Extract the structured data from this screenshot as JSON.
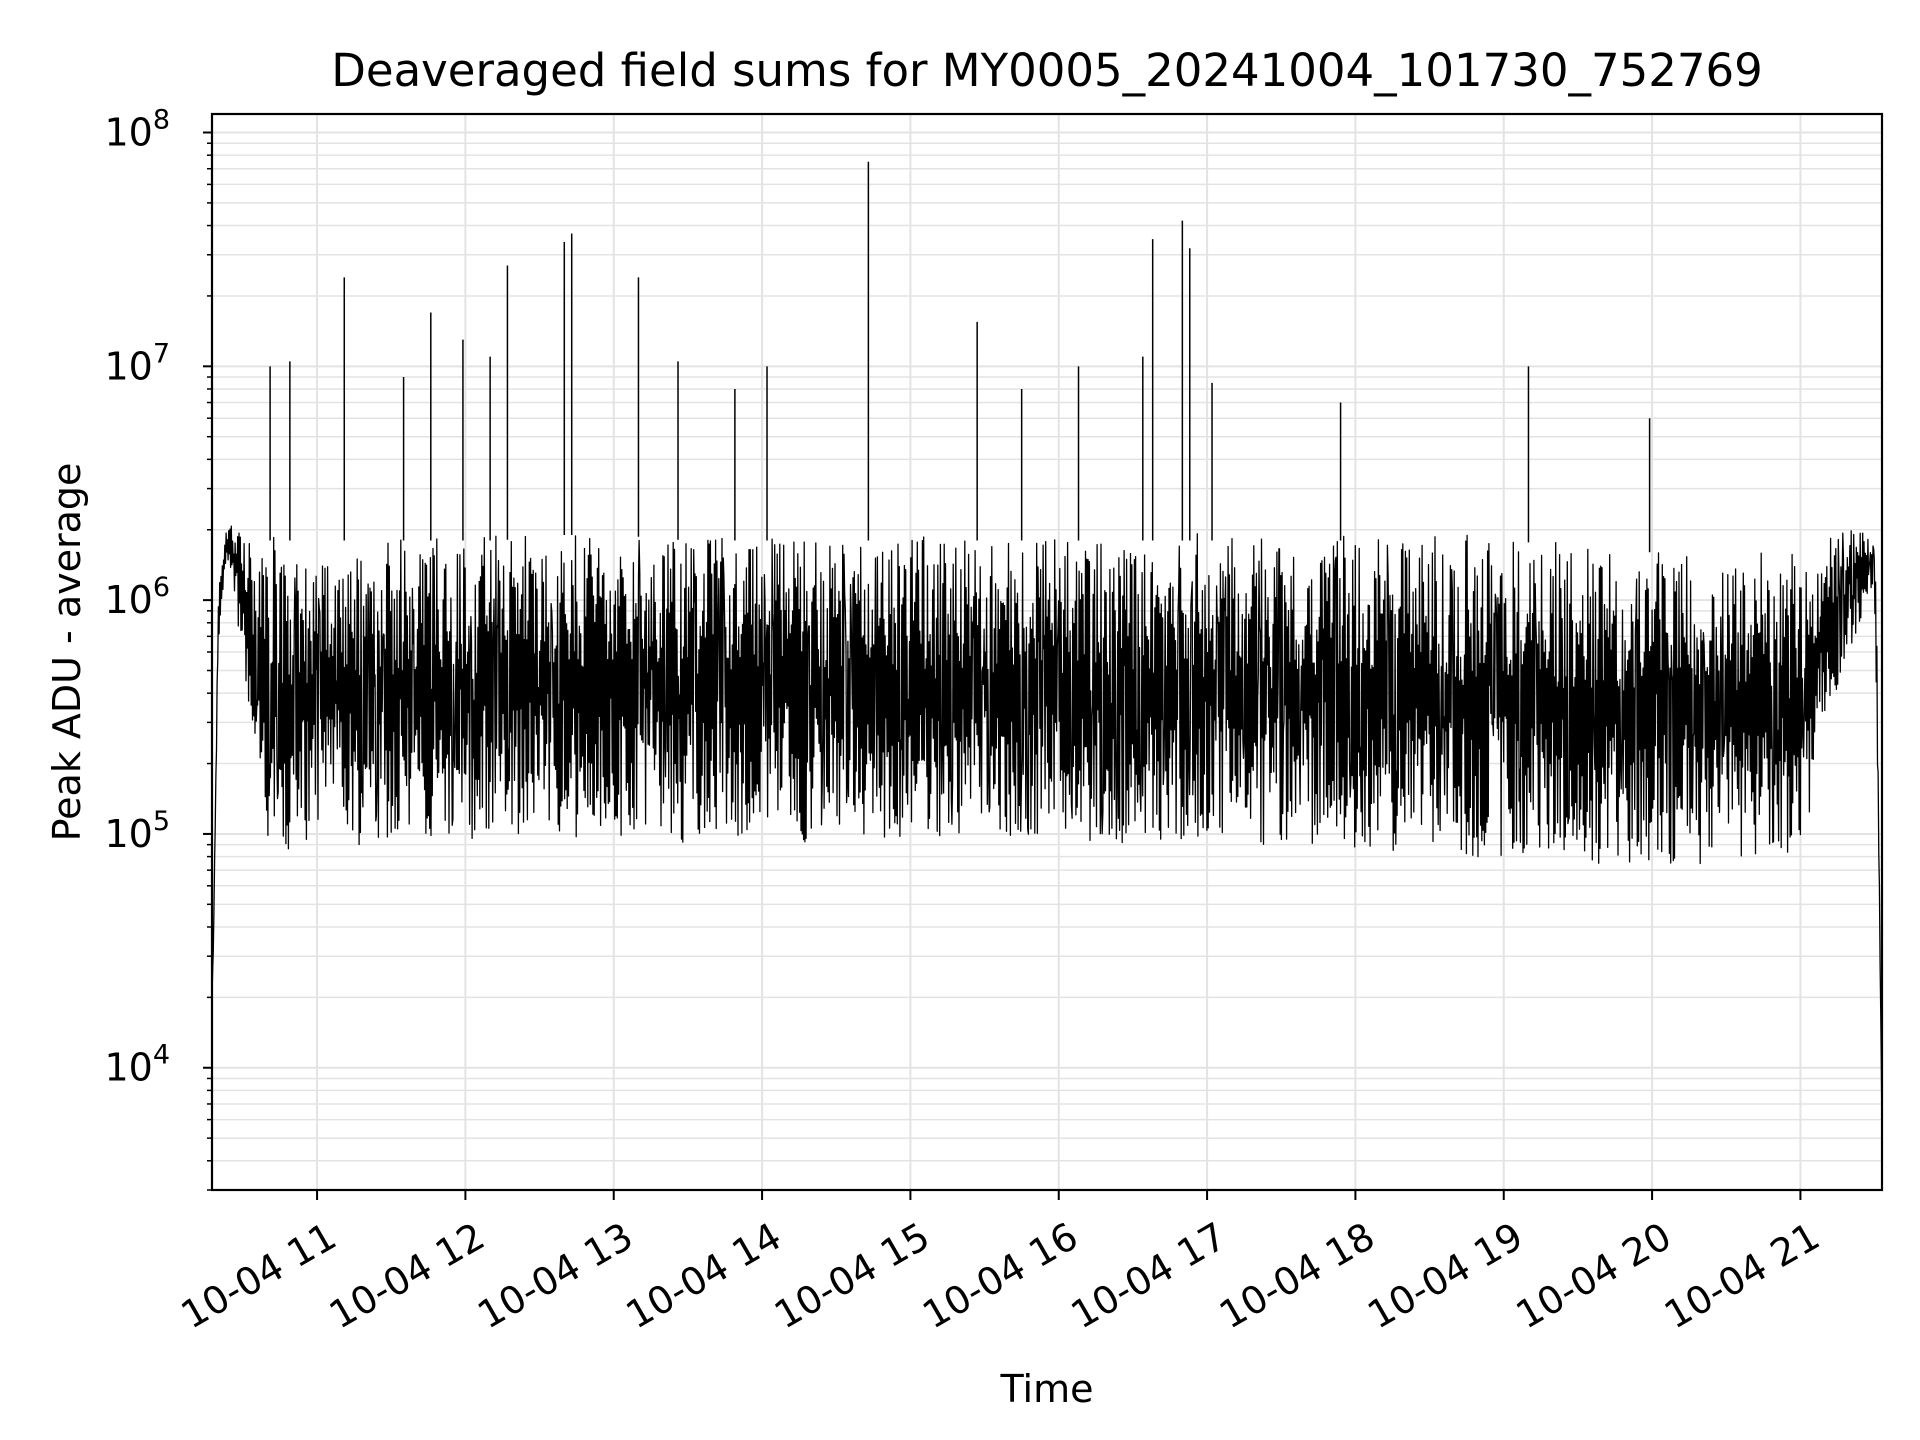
{
  "chart_data": {
    "type": "line",
    "title": "Deaveraged field sums for MY0005_20241004_101730_752769",
    "xlabel": "Time",
    "ylabel": "Peak ADU - average",
    "yscale": "log",
    "ylim": [
      3000,
      120000000
    ],
    "xlim": [
      "2024-10-04 10:17:30",
      "2024-10-04 21:33:00"
    ],
    "grid": true,
    "line_color": "#000000",
    "grid_color": "#e3e3e3",
    "x_ticks": [
      {
        "value": "2024-10-04 11:00",
        "label": "10-04 11"
      },
      {
        "value": "2024-10-04 12:00",
        "label": "10-04 12"
      },
      {
        "value": "2024-10-04 13:00",
        "label": "10-04 13"
      },
      {
        "value": "2024-10-04 14:00",
        "label": "10-04 14"
      },
      {
        "value": "2024-10-04 15:00",
        "label": "10-04 15"
      },
      {
        "value": "2024-10-04 16:00",
        "label": "10-04 16"
      },
      {
        "value": "2024-10-04 17:00",
        "label": "10-04 17"
      },
      {
        "value": "2024-10-04 18:00",
        "label": "10-04 18"
      },
      {
        "value": "2024-10-04 19:00",
        "label": "10-04 19"
      },
      {
        "value": "2024-10-04 20:00",
        "label": "10-04 20"
      },
      {
        "value": "2024-10-04 21:00",
        "label": "10-04 21"
      }
    ],
    "y_ticks": [
      {
        "value": 10000,
        "base": "10",
        "exp": "4"
      },
      {
        "value": 100000,
        "base": "10",
        "exp": "5"
      },
      {
        "value": 1000000,
        "base": "10",
        "exp": "6"
      },
      {
        "value": 10000000,
        "base": "10",
        "exp": "7"
      },
      {
        "value": 100000000,
        "base": "10",
        "exp": "8"
      }
    ],
    "series": [
      {
        "x": [
          "2024-10-04 10:17:30",
          "2024-10-04 10:18",
          "2024-10-04 10:20",
          "2024-10-04 10:23",
          "2024-10-04 10:27",
          "2024-10-04 10:30",
          "2024-10-04 10:33",
          "2024-10-04 10:36",
          "2024-10-04 10:40",
          "2024-10-04 10:45",
          "2024-10-04 10:50",
          "2024-10-04 10:55",
          "2024-10-04 11:00",
          "2024-10-04 11:10",
          "2024-10-04 11:20",
          "2024-10-04 11:30",
          "2024-10-04 11:40",
          "2024-10-04 11:50",
          "2024-10-04 12:00",
          "2024-10-04 12:15",
          "2024-10-04 12:30",
          "2024-10-04 12:45",
          "2024-10-04 13:00",
          "2024-10-04 13:30",
          "2024-10-04 14:00",
          "2024-10-04 14:30",
          "2024-10-04 15:00",
          "2024-10-04 15:30",
          "2024-10-04 16:00",
          "2024-10-04 16:30",
          "2024-10-04 17:00",
          "2024-10-04 17:30",
          "2024-10-04 18:00",
          "2024-10-04 18:30",
          "2024-10-04 19:00",
          "2024-10-04 19:30",
          "2024-10-04 20:00",
          "2024-10-04 20:30",
          "2024-10-04 21:00",
          "2024-10-04 21:10",
          "2024-10-04 21:20",
          "2024-10-04 21:25",
          "2024-10-04 21:28",
          "2024-10-04 21:30",
          "2024-10-04 21:31",
          "2024-10-04 21:32",
          "2024-10-04 21:33"
        ],
        "y_low": [
          20000,
          30000,
          600000,
          1500000,
          900000,
          600000,
          300000,
          120000,
          90000,
          80000,
          80000,
          80000,
          90000,
          90000,
          90000,
          95000,
          95000,
          95000,
          95000,
          95000,
          110000,
          100000,
          100000,
          95000,
          95000,
          95000,
          95000,
          95000,
          95000,
          95000,
          95000,
          95000,
          90000,
          85000,
          80000,
          75000,
          75000,
          75000,
          75000,
          300000,
          600000,
          900000,
          1200000,
          900000,
          200000,
          40000,
          5000
        ],
        "y_high": [
          20000,
          30000,
          1000000,
          2000000,
          2500000,
          2000000,
          1800000,
          1800000,
          1800000,
          1800000,
          1800000,
          1800000,
          1800000,
          1800000,
          1800000,
          1800000,
          1800000,
          1800000,
          1800000,
          1800000,
          1900000,
          1900000,
          1900000,
          1800000,
          1800000,
          1800000,
          1800000,
          1800000,
          1800000,
          1800000,
          1800000,
          1800000,
          1800000,
          1800000,
          1800000,
          1700000,
          1600000,
          1500000,
          1500000,
          1700000,
          2000000,
          2000000,
          1800000,
          1800000,
          600000,
          60000,
          5000
        ]
      }
    ],
    "spikes": [
      {
        "x": "2024-10-04 10:41",
        "y": 10000000
      },
      {
        "x": "2024-10-04 10:49",
        "y": 10500000
      },
      {
        "x": "2024-10-04 11:11",
        "y": 24000000
      },
      {
        "x": "2024-10-04 11:35",
        "y": 9000000
      },
      {
        "x": "2024-10-04 11:46",
        "y": 17000000
      },
      {
        "x": "2024-10-04 11:59",
        "y": 13000000
      },
      {
        "x": "2024-10-04 12:10",
        "y": 11000000
      },
      {
        "x": "2024-10-04 12:17",
        "y": 27000000
      },
      {
        "x": "2024-10-04 12:40",
        "y": 34000000
      },
      {
        "x": "2024-10-04 12:43",
        "y": 37000000
      },
      {
        "x": "2024-10-04 13:10",
        "y": 24000000
      },
      {
        "x": "2024-10-04 13:26",
        "y": 10500000
      },
      {
        "x": "2024-10-04 13:49",
        "y": 8000000
      },
      {
        "x": "2024-10-04 14:02",
        "y": 10000000
      },
      {
        "x": "2024-10-04 14:43",
        "y": 75000000
      },
      {
        "x": "2024-10-04 15:27",
        "y": 15500000
      },
      {
        "x": "2024-10-04 15:45",
        "y": 8000000
      },
      {
        "x": "2024-10-04 16:08",
        "y": 10000000
      },
      {
        "x": "2024-10-04 16:34",
        "y": 11000000
      },
      {
        "x": "2024-10-04 16:38",
        "y": 35000000
      },
      {
        "x": "2024-10-04 16:50",
        "y": 42000000
      },
      {
        "x": "2024-10-04 16:53",
        "y": 32000000
      },
      {
        "x": "2024-10-04 17:02",
        "y": 8500000
      },
      {
        "x": "2024-10-04 17:54",
        "y": 7000000
      },
      {
        "x": "2024-10-04 19:10",
        "y": 10000000
      },
      {
        "x": "2024-10-04 19:59",
        "y": 6000000
      }
    ]
  }
}
